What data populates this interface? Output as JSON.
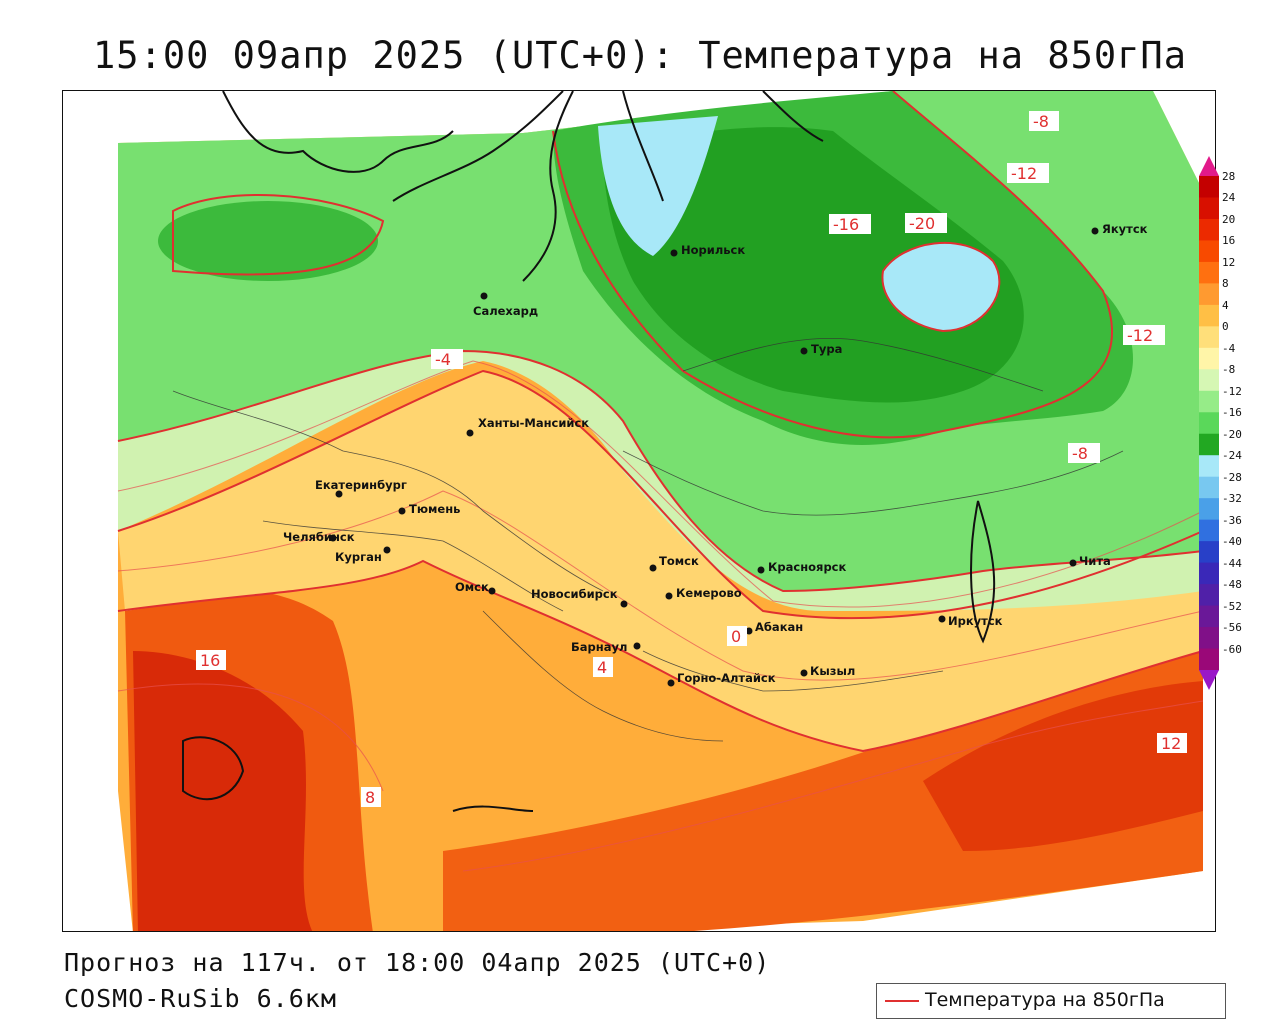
{
  "title": "15:00 09апр 2025 (UTC+0): Температура на 850гПа",
  "footer": {
    "forecast": "Прогноз на 117ч. от 18:00 04апр 2025 (UTC+0)",
    "model": "COSMO-RuSib 6.6км"
  },
  "legend": {
    "label": "Температура на 850гПа",
    "color": "#e03030"
  },
  "colorbar": {
    "ticks": [
      "28",
      "24",
      "20",
      "16",
      "12",
      "8",
      "4",
      "0",
      "-4",
      "-8",
      "-12",
      "-16",
      "-20",
      "-24",
      "-28",
      "-32",
      "-36",
      "-40",
      "-44",
      "-48",
      "-52",
      "-56",
      "-60"
    ],
    "colors": [
      "#c40000",
      "#d81000",
      "#ec2a00",
      "#f84a00",
      "#ff7010",
      "#ff9a30",
      "#ffbf45",
      "#ffdf7a",
      "#fff5a8",
      "#d6f7b4",
      "#96ec88",
      "#5ad85a",
      "#22a822",
      "#a8e8f8",
      "#78c8f0",
      "#4aa0e8",
      "#3070e0",
      "#2840c8",
      "#3a28b8",
      "#5020a8",
      "#6a1898",
      "#801088",
      "#9a0878"
    ],
    "top_arrow": "#e21a8a",
    "bottom_arrow": "#9a18c8"
  },
  "cities": [
    {
      "name": "Норильск"
    },
    {
      "name": "Салехард"
    },
    {
      "name": "Тура"
    },
    {
      "name": "Якутск"
    },
    {
      "name": "Ханты-Мансийск"
    },
    {
      "name": "Екатеринбург"
    },
    {
      "name": "Тюмень"
    },
    {
      "name": "Челябинск"
    },
    {
      "name": "Курган"
    },
    {
      "name": "Омск"
    },
    {
      "name": "Новосибирск"
    },
    {
      "name": "Томск"
    },
    {
      "name": "Кемерово"
    },
    {
      "name": "Красноярск"
    },
    {
      "name": "Барнаул"
    },
    {
      "name": "Абакан"
    },
    {
      "name": "Горно-Алтайск"
    },
    {
      "name": "Кызыл"
    },
    {
      "name": "Иркутск"
    },
    {
      "name": "Чита"
    }
  ],
  "contour_labels": [
    "-8",
    "-12",
    "-16",
    "-20",
    "-12",
    "-8",
    "-4",
    "0",
    "4",
    "8",
    "12",
    "16"
  ]
}
